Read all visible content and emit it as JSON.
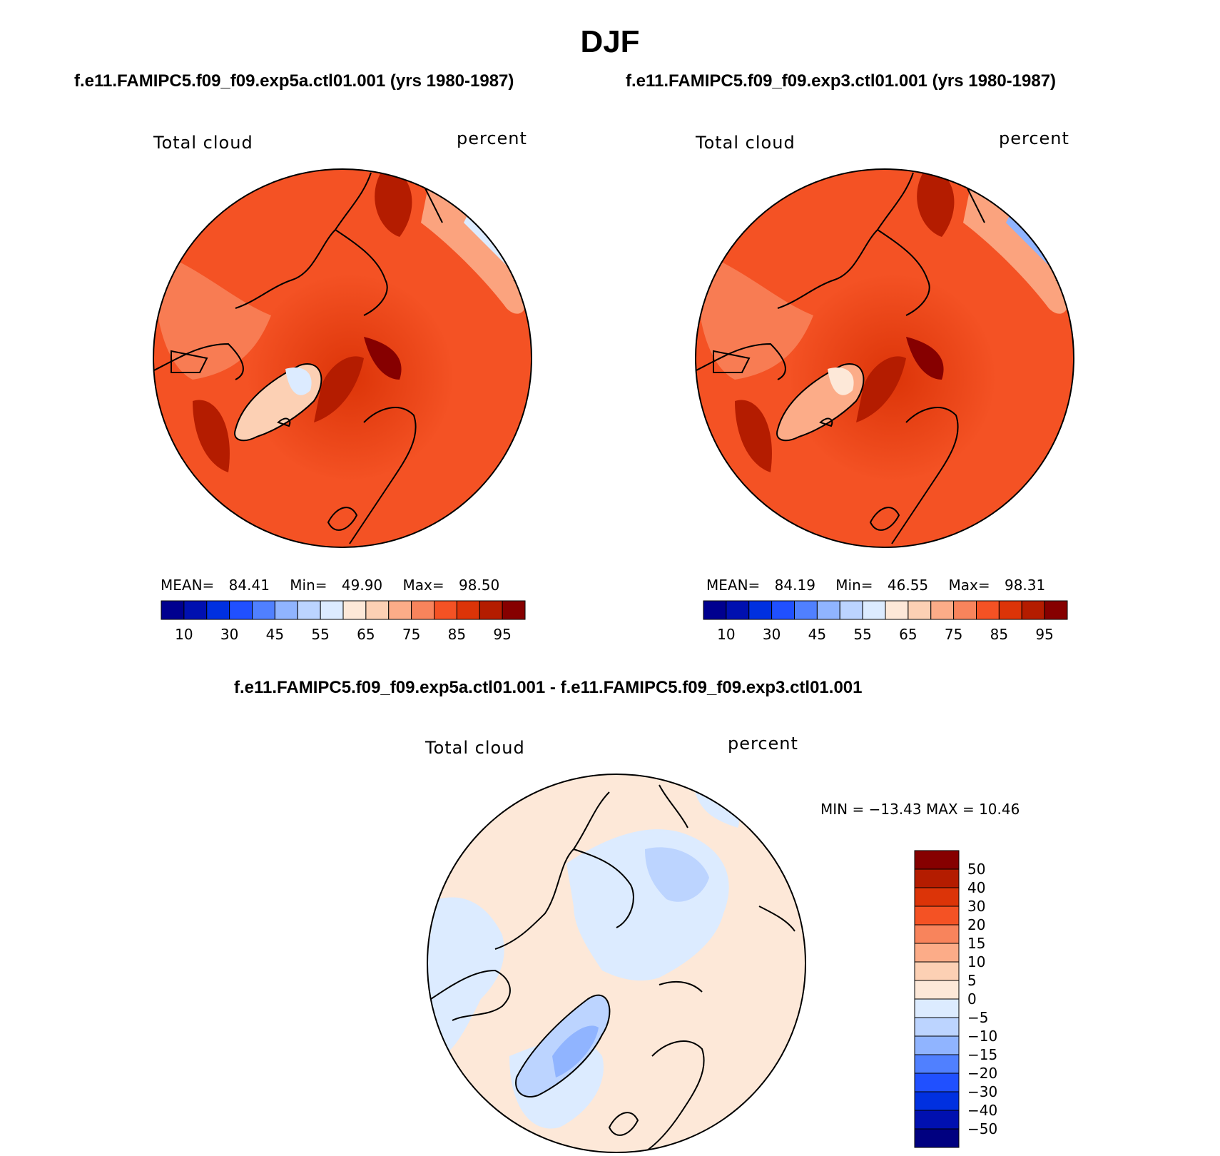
{
  "figure_title": "DJF",
  "colors": {
    "mean_palette": [
      "#00008f",
      "#0010b0",
      "#0030e0",
      "#2050ff",
      "#5080ff",
      "#90b4ff",
      "#bcd4ff",
      "#dcebff",
      "#fde8d8",
      "#fcd0b4",
      "#fcac88",
      "#f8845c",
      "#f45224",
      "#dc3408",
      "#b41c00",
      "#860000"
    ],
    "diff_palette": [
      "#000080",
      "#0010b0",
      "#0030e0",
      "#2050ff",
      "#5080ff",
      "#90b4ff",
      "#bcd4ff",
      "#dcebff",
      "#fde8d8",
      "#fcd0b4",
      "#fcac88",
      "#f8845c",
      "#f45224",
      "#dc3408",
      "#b41c00",
      "#860000"
    ],
    "land_outline": "#000000"
  },
  "panels": [
    {
      "id": "exp5a",
      "case_title": "f.e11.FAMIPC5.f09_f09.exp5a.ctl01.001 (yrs 1980-1987)",
      "variable": "Total cloud",
      "units": "percent",
      "stats": {
        "mean_label": "MEAN=",
        "mean": "84.41",
        "min_label": "Min=",
        "min": "49.90",
        "max_label": "Max=",
        "max": "98.50"
      },
      "colorbar_ticks": [
        "10",
        "30",
        "45",
        "55",
        "65",
        "75",
        "85",
        "95"
      ]
    },
    {
      "id": "exp3",
      "case_title": "f.e11.FAMIPC5.f09_f09.exp3.ctl01.001 (yrs 1980-1987)",
      "variable": "Total cloud",
      "units": "percent",
      "stats": {
        "mean_label": "MEAN=",
        "mean": "84.19",
        "min_label": "Min=",
        "min": "46.55",
        "max_label": "Max=",
        "max": "98.31"
      },
      "colorbar_ticks": [
        "10",
        "30",
        "45",
        "55",
        "65",
        "75",
        "85",
        "95"
      ]
    }
  ],
  "diff_panel": {
    "case_title": "f.e11.FAMIPC5.f09_f09.exp5a.ctl01.001 - f.e11.FAMIPC5.f09_f09.exp3.ctl01.001",
    "variable": "Total cloud",
    "units": "percent",
    "minmax_text": "MIN = −13.43 MAX =   10.46",
    "colorbar_ticks": [
      "50",
      "40",
      "30",
      "20",
      "15",
      "10",
      "5",
      "0",
      "−5",
      "−10",
      "−15",
      "−20",
      "−30",
      "−40",
      "−50"
    ]
  },
  "chart_data": [
    {
      "type": "heatmap",
      "projection": "north-polar-stereographic",
      "title": "f.e11.FAMIPC5.f09_f09.exp5a.ctl01.001 (yrs 1980-1987)",
      "variable": "Total cloud",
      "units": "percent",
      "mean": 84.41,
      "min": 49.9,
      "max": 98.5,
      "contour_levels": [
        10,
        20,
        30,
        40,
        45,
        50,
        55,
        60,
        65,
        70,
        75,
        80,
        85,
        90,
        95
      ],
      "colorbar_tick_labels": [
        10,
        30,
        45,
        55,
        65,
        75,
        85,
        95
      ]
    },
    {
      "type": "heatmap",
      "projection": "north-polar-stereographic",
      "title": "f.e11.FAMIPC5.f09_f09.exp3.ctl01.001 (yrs 1980-1987)",
      "variable": "Total cloud",
      "units": "percent",
      "mean": 84.19,
      "min": 46.55,
      "max": 98.31,
      "contour_levels": [
        10,
        20,
        30,
        40,
        45,
        50,
        55,
        60,
        65,
        70,
        75,
        80,
        85,
        90,
        95
      ],
      "colorbar_tick_labels": [
        10,
        30,
        45,
        55,
        65,
        75,
        85,
        95
      ]
    },
    {
      "type": "heatmap",
      "projection": "north-polar-stereographic",
      "title": "f.e11.FAMIPC5.f09_f09.exp5a.ctl01.001 - f.e11.FAMIPC5.f09_f09.exp3.ctl01.001",
      "variable": "Total cloud",
      "units": "percent",
      "min": -13.43,
      "max": 10.46,
      "contour_levels": [
        -50,
        -40,
        -30,
        -20,
        -15,
        -10,
        -5,
        0,
        5,
        10,
        15,
        20,
        30,
        40,
        50
      ],
      "colorbar_tick_labels": [
        50,
        40,
        30,
        20,
        15,
        10,
        5,
        0,
        -5,
        -10,
        -15,
        -20,
        -30,
        -40,
        -50
      ]
    }
  ]
}
